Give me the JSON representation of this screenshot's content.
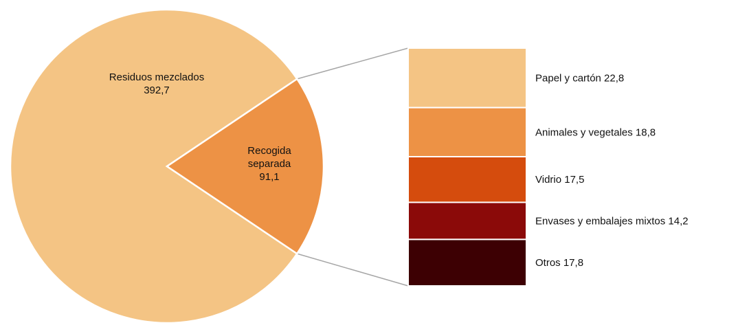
{
  "chart_data": {
    "type": "bar-of-pie",
    "title": "",
    "pie": {
      "slices": [
        {
          "label_lines": [
            "Residuos mezclados"
          ],
          "value": 392.7,
          "value_text": "392,7",
          "color": "#F4C484"
        },
        {
          "label_lines": [
            "Recogida",
            "separada"
          ],
          "value": 91.1,
          "value_text": "91,1",
          "color": "#ED9245"
        }
      ]
    },
    "breakdown": {
      "of": "Recogida separada",
      "items": [
        {
          "label": "Papel y cartón",
          "value": 22.8,
          "value_text": "22,8",
          "color": "#F4C484"
        },
        {
          "label": "Animales y vegetales",
          "value": 18.8,
          "value_text": "18,8",
          "color": "#ED9245"
        },
        {
          "label": "Vidrio",
          "value": 17.5,
          "value_text": "17,5",
          "color": "#D54C0D"
        },
        {
          "label": "Envases y embalajes mixtos",
          "value": 14.2,
          "value_text": "14,2",
          "color": "#8B0A09"
        },
        {
          "label": "Otros",
          "value": 17.8,
          "value_text": "17,8",
          "color": "#3D0003"
        }
      ]
    },
    "legend": "none",
    "grid": false
  }
}
